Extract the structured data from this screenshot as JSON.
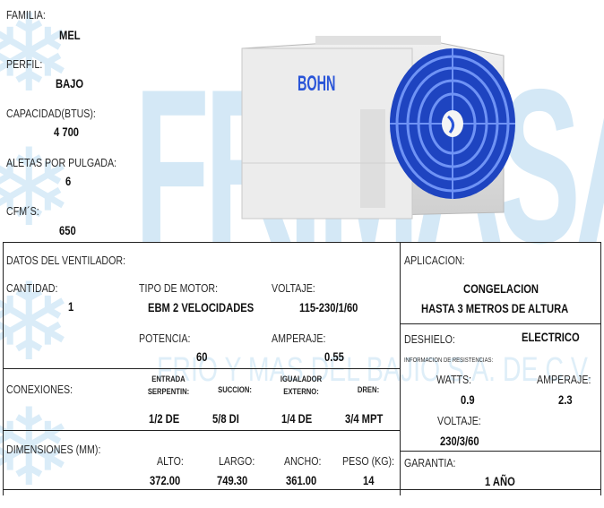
{
  "watermark": {
    "brand": "FRIMASA",
    "company": "FRIO Y MAS DEL BAJIO S.A. DE C.V."
  },
  "product": {
    "logo": "BOHN"
  },
  "specs": {
    "familia": {
      "label": "FAMILIA:",
      "value": "MEL"
    },
    "perfil": {
      "label": "PERFIL:",
      "value": "BAJO"
    },
    "capacidad": {
      "label": "CAPACIDAD(BTUS):",
      "value": "4 700"
    },
    "aletas": {
      "label": "ALETAS POR PULGADA:",
      "value": "6"
    },
    "cfm": {
      "label": "CFM´S:",
      "value": "650"
    }
  },
  "ventilador": {
    "title": "DATOS DEL VENTILADOR:",
    "cantidad_label": "CANTIDAD:",
    "cantidad": "1",
    "motor_label": "TIPO DE MOTOR:",
    "motor": "EBM 2 VELOCIDADES",
    "voltaje_label": "VOLTAJE:",
    "voltaje": "115-230/1/60",
    "potencia_label": "POTENCIA:",
    "potencia": "60",
    "amperaje_label": "AMPERAJE:",
    "amperaje": "0.55"
  },
  "aplicacion": {
    "label": "APLICACION:",
    "line1": "CONGELACION",
    "line2": "HASTA 3 METROS DE  ALTURA"
  },
  "deshielo": {
    "label": "DESHIELO:",
    "value": "ELECTRICO",
    "info": "INFORMACION DE RESISTENCIAS:",
    "watts_label": "WATTS:",
    "watts": "0.9",
    "amperaje_label": "AMPERAJE:",
    "amperaje": "2.3",
    "voltaje_label": "VOLTAJE:",
    "voltaje": "230/3/60"
  },
  "conexiones": {
    "label": "CONEXIONES:",
    "entrada_label_1": "ENTRADA",
    "entrada_label_2": "SERPENTIN:",
    "entrada": "1/2 DE",
    "succion_label": "SUCCION:",
    "succion": "5/8 DI",
    "igualador_label_1": "IGUALADOR",
    "igualador_label_2": "EXTERNO:",
    "igualador": "1/4 DE",
    "dren_label": "DREN:",
    "dren": "3/4 MPT"
  },
  "dimensiones": {
    "label": "DIMENSIONES (MM):",
    "alto_label": "ALTO:",
    "alto": "372.00",
    "largo_label": "LARGO:",
    "largo": "749.30",
    "ancho_label": "ANCHO:",
    "ancho": "361.00",
    "peso_label": "PESO (KG):",
    "peso": "14"
  },
  "garantia": {
    "label": "GARANTIA:",
    "value": "1 AÑO"
  },
  "colors": {
    "fan_blue": "#2a55d8",
    "watermark": "#a0cdeb",
    "border": "#222222"
  }
}
